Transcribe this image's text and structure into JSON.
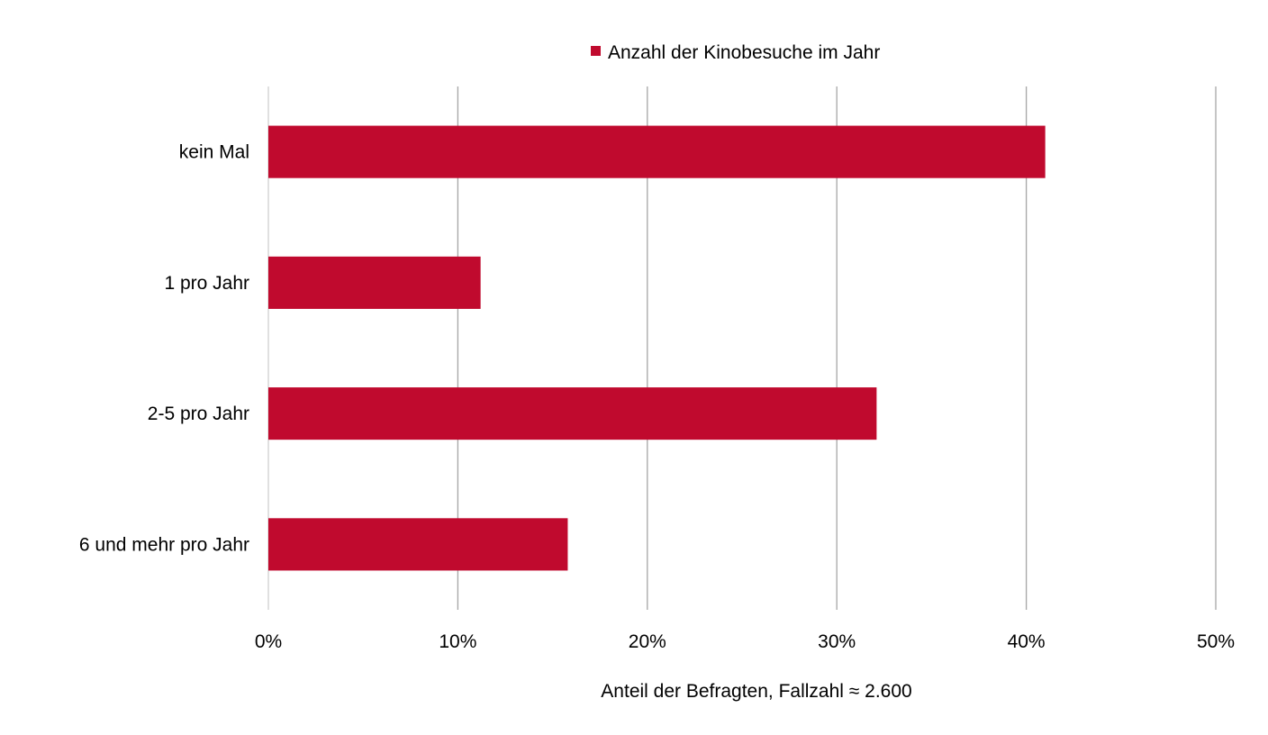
{
  "chart_data": {
    "type": "bar",
    "orientation": "horizontal",
    "categories": [
      "kein Mal",
      "1 pro Jahr",
      "2-5 pro Jahr",
      "6 und mehr pro Jahr"
    ],
    "series": [
      {
        "name": "Anzahl der Kinobesuche im Jahr",
        "values": [
          41,
          11.2,
          32.1,
          15.8
        ],
        "color": "#c00a2e"
      }
    ],
    "xlabel": "Anteil der Befragten, Fallzahl ≈ 2.600",
    "ylabel": "",
    "xlim": [
      0,
      50
    ],
    "xticks": [
      0,
      10,
      20,
      30,
      40,
      50
    ],
    "xtick_labels": [
      "0%",
      "10%",
      "20%",
      "30%",
      "40%",
      "50%"
    ],
    "grid": true,
    "grid_color": "#a6a6a6",
    "legend_position": "top"
  }
}
